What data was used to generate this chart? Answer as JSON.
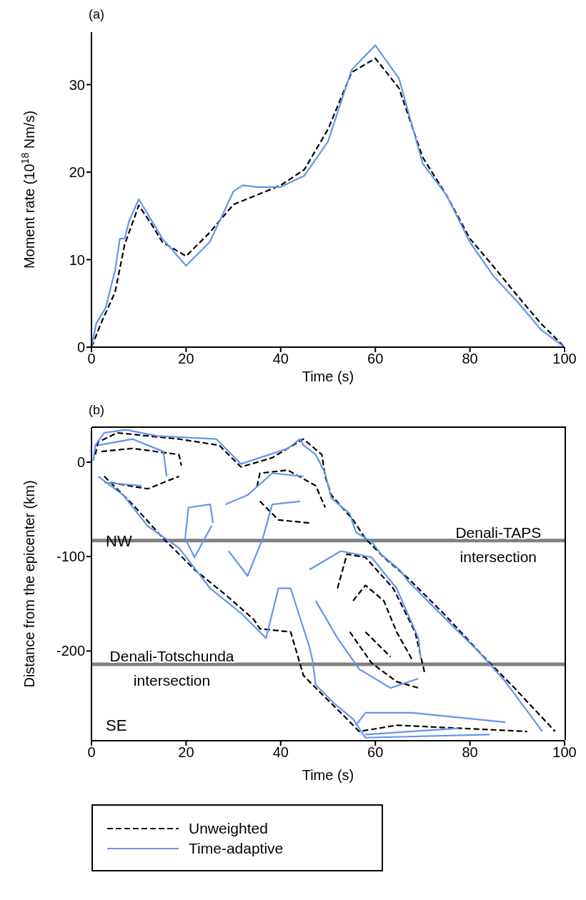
{
  "chart_data": [
    {
      "type": "line",
      "xlabel": "Time (s)",
      "ylabel": "Moment rate (10$^{18}$ Nm/s)",
      "annotations": [
        "(a)"
      ],
      "xlim": [
        0,
        100
      ],
      "xticks": [
        0,
        20,
        40,
        60,
        80,
        100
      ],
      "ylim": [
        0,
        36
      ],
      "yticks": [
        0,
        10,
        20,
        30
      ],
      "grid": false,
      "legend": false,
      "series": [
        {
          "color": "#000000",
          "line_style": "dashed",
          "x": [
            0,
            2,
            5,
            7,
            10,
            12.5,
            15,
            20,
            25,
            30,
            35,
            40,
            45,
            50,
            55,
            60,
            65,
            70,
            75,
            80,
            85,
            90,
            95,
            100
          ],
          "values": [
            0,
            2.7,
            6.3,
            11.7,
            16.2,
            14.2,
            12.0,
            10.4,
            13.1,
            16.3,
            17.4,
            18.5,
            20.3,
            24.9,
            31.4,
            33.0,
            29.6,
            21.7,
            17.4,
            12.4,
            9.2,
            5.9,
            2.7,
            0
          ]
        },
        {
          "color": "#6495ed",
          "line_style": "solid",
          "x": [
            0,
            1,
            3,
            5,
            6,
            7,
            8,
            10,
            15,
            20,
            25,
            30,
            32,
            35,
            40,
            45,
            50,
            55,
            60,
            65,
            70,
            75,
            80,
            85,
            90,
            95,
            100
          ],
          "values": [
            0,
            2.7,
            4.5,
            8.8,
            12.4,
            12.4,
            14.5,
            16.9,
            12.4,
            9.3,
            12.0,
            17.8,
            18.5,
            18.3,
            18.3,
            19.6,
            23.5,
            31.7,
            34.5,
            30.7,
            21.0,
            17.4,
            12.0,
            8.1,
            5.2,
            2.0,
            0
          ]
        }
      ]
    },
    {
      "type": "line",
      "xlabel": "Time (s)",
      "ylabel": "Distance from the epicenter (km)",
      "annotations": [
        "(b)",
        "NW",
        "SE"
      ],
      "xlim": [
        0,
        100
      ],
      "xticks": [
        0,
        20,
        40,
        60,
        80,
        100
      ],
      "ylim": [
        -295,
        37
      ],
      "yticks": [
        0,
        -100,
        -200
      ],
      "grid": false,
      "legend": "bottom",
      "ref_lines": [
        {
          "axis": "y",
          "value": -83,
          "label": "Denali-TAPS intersection",
          "color": "#808080"
        },
        {
          "axis": "y",
          "value": -214,
          "label": "Denali-Totschunda intersection",
          "color": "#808080"
        }
      ],
      "series": [
        {
          "name": "Unweighted",
          "color": "#000000",
          "line_style": "dashed",
          "x": [
            0.8,
            1.4,
            5.4,
            18.5,
            27.0,
            31.6,
            38.2,
            44.8,
            48.7,
            49.4,
            50.7,
            55.3,
            57.9,
            61.8,
            67.1,
            75.0,
            82.9,
            89.4,
            98.0
          ],
          "values": [
            7.9,
            21.1,
            31.0,
            24.4,
            17.8,
            -5.2,
            4.6,
            24.4,
            7.9,
            -15.1,
            -34.9,
            -61.2,
            -81.0,
            -100.8,
            -123.8,
            -163.3,
            -206.1,
            -239.1,
            -285.2
          ]
        },
        {
          "color": "#000000",
          "line_style": "dashed",
          "x": [
            2.7,
            8.7,
            15.2,
            21.8,
            28.3,
            34.3,
            35.6,
            42.1,
            44.8,
            48.7,
            52.7,
            56.6,
            64.5,
            92.1
          ],
          "values": [
            -15.1,
            -44.8,
            -81.0,
            -113.9,
            -140.3,
            -166.6,
            -176.5,
            -179.8,
            -225.9,
            -245.7,
            -265.4,
            -285.2,
            -278.6,
            -285.2
          ]
        },
        {
          "color": "#000000",
          "line_style": "dashed",
          "x": [
            35.0,
            35.6,
            41.5,
            47.4,
            49.4
          ],
          "values": [
            -26.0,
            -11.8,
            -8.5,
            -25.0,
            -48.1
          ]
        },
        {
          "color": "#000000",
          "line_style": "dashed",
          "x": [
            35.6,
            39.5,
            46.1
          ],
          "values": [
            -41.5,
            -61.2,
            -64.5
          ]
        },
        {
          "color": "#000000",
          "line_style": "dashed",
          "x": [
            52.0,
            54.0,
            57.9,
            63.8,
            68.4,
            70.4
          ],
          "values": [
            -133.7,
            -97.5,
            -100.8,
            -133.7,
            -179.8,
            -222.6
          ]
        },
        {
          "color": "#000000",
          "line_style": "dashed",
          "x": [
            54.6,
            59.2,
            64.5,
            69.1
          ],
          "values": [
            -179.8,
            -212.7,
            -232.5,
            -239.1
          ]
        },
        {
          "color": "#000000",
          "line_style": "dashed",
          "x": [
            55.3,
            57.9,
            61.8,
            64.5,
            67.8
          ],
          "values": [
            -146.9,
            -130.4,
            -146.9,
            -179.8,
            -209.4
          ]
        },
        {
          "color": "#000000",
          "line_style": "dashed",
          "x": [
            57.9,
            63.2
          ],
          "values": [
            -179.8,
            -206.1
          ]
        },
        {
          "color": "#000000",
          "line_style": "dashed",
          "x": [
            2.1,
            8.7,
            18.5,
            19.0
          ],
          "values": [
            11.2,
            14.5,
            7.9,
            -3.6
          ]
        },
        {
          "color": "#000000",
          "line_style": "dashed",
          "x": [
            4.0,
            11.9,
            18.5
          ],
          "values": [
            -21.7,
            -28.3,
            -15.1
          ]
        },
        {
          "name": "Time-adaptive",
          "color": "#6495ed",
          "line_style": "solid",
          "x": [
            0.4,
            0.8,
            2.7,
            7.3,
            13.9,
            26.4,
            31.6,
            35.6,
            41.5,
            44.1,
            44.8,
            47.4,
            49.4,
            50.7,
            54.6,
            55.9,
            59.2,
            61.2,
            65.1,
            67.1,
            74.3,
            81.6,
            87.5,
            95.3
          ],
          "values": [
            1.4,
            17.8,
            31.0,
            34.3,
            27.7,
            24.4,
            -1.9,
            4.6,
            14.5,
            24.4,
            17.8,
            7.9,
            -11.8,
            -38.2,
            -54.6,
            -74.4,
            -84.3,
            -97.5,
            -113.9,
            -127.1,
            -163.3,
            -199.6,
            -232.5,
            -285.2
          ]
        },
        {
          "color": "#6495ed",
          "line_style": "solid",
          "x": [
            1.4,
            6.7,
            11.9,
            18.5,
            25.1,
            31.6,
            36.9,
            39.5,
            42.1,
            46.1,
            46.7,
            47.4,
            51.3,
            55.3,
            57.9,
            84.2
          ],
          "values": [
            -15.1,
            -34.9,
            -67.8,
            -90.9,
            -133.7,
            -160.0,
            -186.4,
            -133.7,
            -133.7,
            -196.3,
            -209.4,
            -235.8,
            -255.5,
            -272.0,
            -291.8,
            -288.5
          ]
        },
        {
          "color": "#6495ed",
          "line_style": "solid",
          "x": [
            1.4,
            8.7,
            15.2,
            15.9
          ],
          "values": [
            17.8,
            24.4,
            11.2,
            -15.1
          ]
        },
        {
          "color": "#6495ed",
          "line_style": "solid",
          "x": [
            2.7,
            10.6
          ],
          "values": [
            -21.7,
            -25.0
          ]
        },
        {
          "color": "#6495ed",
          "line_style": "solid",
          "x": [
            28.3,
            33.0,
            38.2,
            44.8
          ],
          "values": [
            -44.8,
            -34.9,
            -11.8,
            -15.1
          ]
        },
        {
          "color": "#6495ed",
          "line_style": "solid",
          "x": [
            29.0,
            33.0,
            36.2,
            38.2,
            44.1
          ],
          "values": [
            -94.2,
            -120.5,
            -81.0,
            -44.8,
            -41.5
          ]
        },
        {
          "color": "#6495ed",
          "line_style": "solid",
          "x": [
            46.1,
            52.7,
            59.2,
            64.5,
            69.1,
            69.6
          ],
          "values": [
            -113.9,
            -94.2,
            -100.8,
            -133.7,
            -186.4,
            -208.0
          ]
        },
        {
          "color": "#6495ed",
          "line_style": "solid",
          "x": [
            47.4,
            52.0,
            56.6,
            63.2,
            69.1
          ],
          "values": [
            -146.9,
            -186.4,
            -219.3,
            -239.1,
            -229.2
          ]
        },
        {
          "color": "#6495ed",
          "line_style": "solid",
          "x": [
            19.8,
            20.5,
            25.1,
            25.7
          ],
          "values": [
            -81.0,
            -48.1,
            -44.8,
            -64.5
          ]
        },
        {
          "color": "#6495ed",
          "line_style": "solid",
          "x": [
            20.0,
            21.8,
            25.4
          ],
          "values": [
            -83.0,
            -100.8,
            -67.3
          ]
        },
        {
          "color": "#6495ed",
          "line_style": "solid",
          "x": [
            55.9,
            57.9,
            67.8,
            87.5
          ],
          "values": [
            -278.6,
            -265.4,
            -265.4,
            -275.4
          ]
        },
        {
          "color": "#6495ed",
          "line_style": "solid",
          "x": [
            57.9,
            77.6
          ],
          "values": [
            -288.5,
            -281.9
          ]
        }
      ]
    }
  ]
}
